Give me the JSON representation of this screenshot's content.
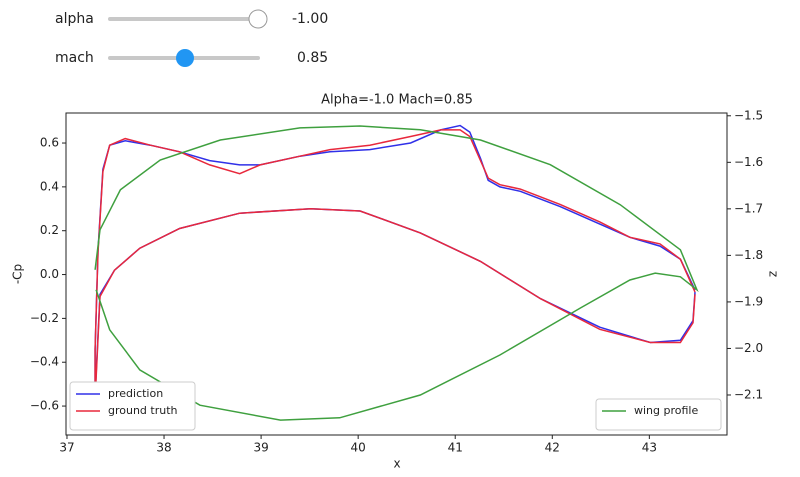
{
  "controls": [
    {
      "label": "alpha",
      "value": -1.0,
      "value_label": "-1.00"
    },
    {
      "label": "mach",
      "value": 0.85
    }
  ],
  "chart_data": {
    "type": "line",
    "title": "Alpha=-1.0 Mach=0.85",
    "x_label": "x",
    "y_label": "-Cp",
    "y2_label": "z",
    "xlim": [
      36.99,
      43.8
    ],
    "xticks": [
      37,
      38,
      39,
      40,
      41,
      42,
      43
    ],
    "ylim": [
      -0.732,
      0.737
    ],
    "yticks": [
      {
        "value": -0.6,
        "label": "−0.6"
      },
      {
        "value": -0.4,
        "label": "−0.4"
      },
      {
        "value": -0.2,
        "label": "−0.2"
      },
      {
        "value": 0,
        "label": "0.0"
      },
      0.2,
      0.4,
      0.6
    ],
    "y2lim": [
      -2.186,
      -1.494
    ],
    "y2ticks": [
      {
        "value": -2.1,
        "label": "−2.1"
      },
      {
        "value": -2.0,
        "label": "−2.0"
      },
      {
        "value": -1.9,
        "label": "−1.9"
      },
      {
        "value": -1.8,
        "label": "−1.8"
      },
      {
        "value": -1.7,
        "label": "−1.7"
      },
      {
        "value": -1.6,
        "label": "−1.6"
      },
      {
        "value": -1.5,
        "label": "−1.5"
      }
    ],
    "legend": "lower left",
    "y2_legend": "lower right",
    "series": [
      {
        "name": "prediction",
        "color": "#3030e8",
        "x": [
          43.47,
          43.32,
          43.11,
          42.8,
          42.49,
          42.08,
          41.67,
          41.46,
          41.34,
          41.26,
          41.15,
          41.05,
          40.85,
          40.54,
          40.12,
          39.71,
          39.4,
          38.99,
          38.78,
          38.47,
          38.16,
          37.86,
          37.6,
          37.44,
          37.37,
          37.32,
          37.29,
          37.29,
          37.34,
          37.49,
          37.75,
          38.16,
          38.78,
          39.51,
          40.02,
          40.64,
          41.26,
          41.88,
          42.49,
          43.01,
          43.32,
          43.45,
          43.47
        ],
        "values": [
          -0.07,
          0.07,
          0.13,
          0.17,
          0.23,
          0.31,
          0.38,
          0.4,
          0.43,
          0.53,
          0.65,
          0.68,
          0.66,
          0.6,
          0.57,
          0.56,
          0.54,
          0.5,
          0.5,
          0.52,
          0.56,
          0.59,
          0.61,
          0.59,
          0.48,
          0.11,
          -0.34,
          -0.55,
          -0.09,
          0.02,
          0.12,
          0.21,
          0.28,
          0.3,
          0.29,
          0.19,
          0.06,
          -0.11,
          -0.24,
          -0.31,
          -0.3,
          -0.21,
          -0.08
        ]
      },
      {
        "name": "ground truth",
        "color": "#e8283c",
        "x": [
          43.47,
          43.32,
          43.11,
          42.8,
          42.49,
          42.08,
          41.67,
          41.46,
          41.34,
          41.26,
          41.15,
          41.05,
          40.85,
          40.54,
          40.12,
          39.71,
          39.4,
          38.99,
          38.78,
          38.47,
          38.16,
          37.86,
          37.6,
          37.44,
          37.37,
          37.32,
          37.29,
          37.29,
          37.34,
          37.49,
          37.75,
          38.16,
          38.78,
          39.51,
          40.02,
          40.64,
          41.26,
          41.88,
          42.49,
          43.01,
          43.32,
          43.45,
          43.47
        ],
        "values": [
          -0.08,
          0.07,
          0.14,
          0.17,
          0.24,
          0.32,
          0.39,
          0.41,
          0.44,
          0.52,
          0.63,
          0.66,
          0.66,
          0.63,
          0.59,
          0.57,
          0.54,
          0.5,
          0.46,
          0.5,
          0.56,
          0.59,
          0.62,
          0.59,
          0.47,
          0.1,
          -0.34,
          -0.57,
          -0.1,
          0.02,
          0.12,
          0.21,
          0.28,
          0.3,
          0.29,
          0.19,
          0.06,
          -0.11,
          -0.25,
          -0.31,
          -0.31,
          -0.22,
          -0.09
        ]
      },
      {
        "name": "wing profile",
        "color": "#3fa03f",
        "axis": "y2",
        "x": [
          37.29,
          37.34,
          37.55,
          37.96,
          38.58,
          39.4,
          40.02,
          40.64,
          41.26,
          41.98,
          42.7,
          43.32,
          43.49,
          43.32,
          43.06,
          42.8,
          42.29,
          41.46,
          40.64,
          39.81,
          39.2,
          38.37,
          37.75,
          37.44,
          37.3
        ],
        "values": [
          -1.831,
          -1.745,
          -1.659,
          -1.595,
          -1.552,
          -1.526,
          -1.522,
          -1.53,
          -1.552,
          -1.605,
          -1.691,
          -1.788,
          -1.874,
          -1.846,
          -1.838,
          -1.853,
          -1.913,
          -2.014,
          -2.1,
          -2.149,
          -2.154,
          -2.122,
          -2.046,
          -1.96,
          -1.874
        ]
      }
    ]
  }
}
